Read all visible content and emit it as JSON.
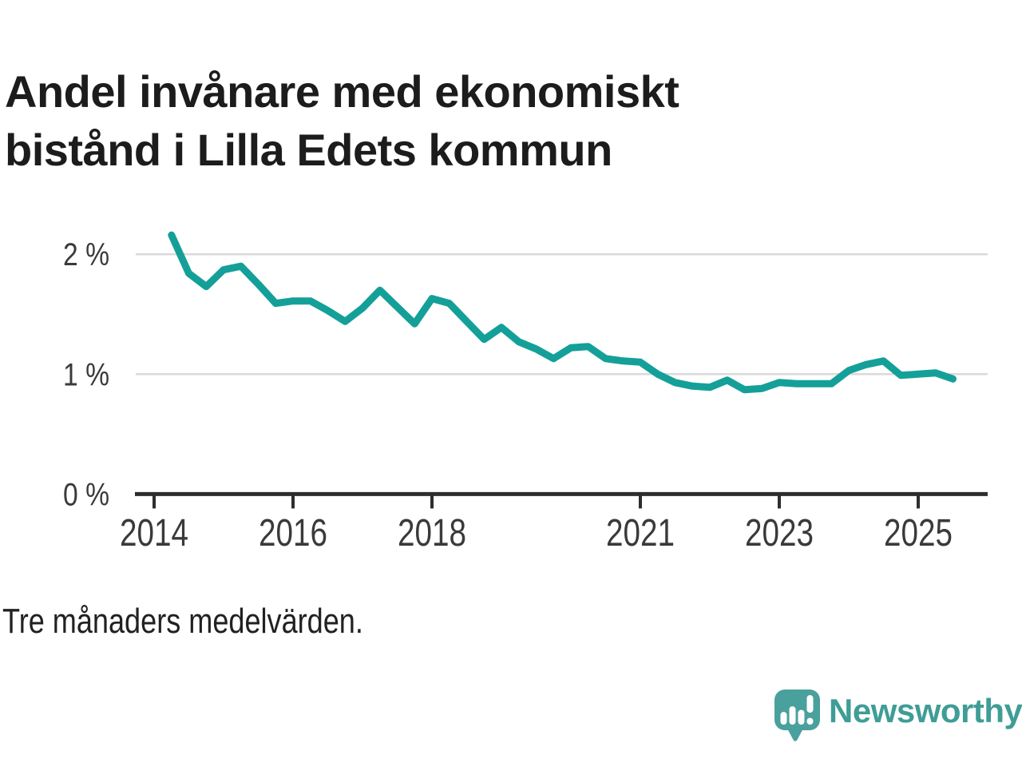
{
  "header": {
    "title": "Andel invånare med ekonomiskt bistånd i Lilla Edets kommun"
  },
  "caption": {
    "text": "Tre månaders medelvärden."
  },
  "footer": {
    "brand": "Newsworthy",
    "logo_icon": "speech-bubble-bar-chart-exclamation"
  },
  "colors": {
    "line": "#14A099",
    "grid": "#DADADA",
    "axis": "#2D2D2D",
    "tick_label": "#3A3A3A",
    "title_text": "#1C1C1C",
    "caption_text": "#212121",
    "brand_teal": "#3F9D96",
    "logo_bubble": "#4AA09D"
  },
  "chart_data": {
    "type": "line",
    "title": "Andel invånare med ekonomiskt bistånd i Lilla Edets kommun",
    "note": "Tre månaders medelvärden.",
    "unit": "%",
    "grid": "horizontal",
    "legend": "none",
    "xlim": [
      2013.72,
      2026.06
    ],
    "ylim": [
      0,
      2.28
    ],
    "x_ticks": [
      {
        "value": 2014,
        "label": "2014"
      },
      {
        "value": 2016,
        "label": "2016"
      },
      {
        "value": 2018,
        "label": "2018"
      },
      {
        "value": 2021,
        "label": "2021"
      },
      {
        "value": 2023,
        "label": "2023"
      },
      {
        "value": 2025,
        "label": "2025"
      }
    ],
    "y_ticks": [
      {
        "value": 0,
        "label": "0 %"
      },
      {
        "value": 1,
        "label": "1 %"
      },
      {
        "value": 2,
        "label": "2 %"
      }
    ],
    "x": [
      2014.25,
      2014.5,
      2014.75,
      2015,
      2015.25,
      2015.5,
      2015.75,
      2016,
      2016.25,
      2016.5,
      2016.75,
      2017,
      2017.25,
      2017.5,
      2017.75,
      2018,
      2018.25,
      2018.5,
      2018.75,
      2019,
      2019.25,
      2019.5,
      2019.75,
      2020,
      2020.25,
      2020.5,
      2020.75,
      2021,
      2021.25,
      2021.5,
      2021.75,
      2022,
      2022.25,
      2022.5,
      2022.75,
      2023,
      2023.25,
      2023.5,
      2023.75,
      2024,
      2024.25,
      2024.5,
      2024.75,
      2025,
      2025.25,
      2025.5
    ],
    "series": [
      {
        "name": "Andel invånare med ekonomiskt bistånd",
        "values": [
          2.16,
          1.84,
          1.73,
          1.87,
          1.9,
          1.75,
          1.59,
          1.61,
          1.61,
          1.53,
          1.44,
          1.55,
          1.7,
          1.56,
          1.42,
          1.63,
          1.59,
          1.44,
          1.29,
          1.39,
          1.27,
          1.21,
          1.13,
          1.22,
          1.23,
          1.13,
          1.11,
          1.1,
          1.0,
          0.93,
          0.9,
          0.89,
          0.95,
          0.87,
          0.88,
          0.93,
          0.92,
          0.92,
          0.92,
          1.03,
          1.08,
          1.11,
          0.99,
          1.0,
          1.01,
          0.96
        ]
      }
    ]
  }
}
